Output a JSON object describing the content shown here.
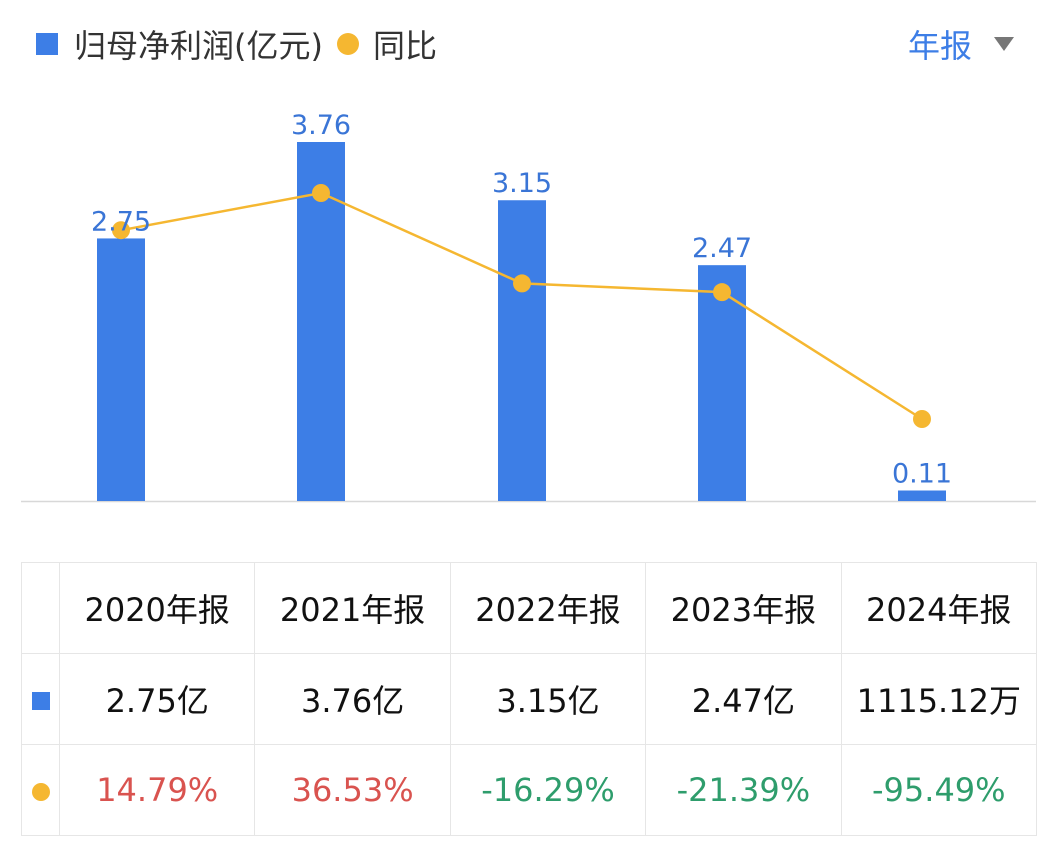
{
  "legend": {
    "bar_label": "归母净利润(亿元)",
    "line_label": "同比"
  },
  "period_selector": {
    "label": "年报"
  },
  "colors": {
    "bar": "#3d7ee6",
    "line": "#f5b731",
    "positive": "#d9534f",
    "negative": "#2e9d6c",
    "bar_label": "#3a75d6"
  },
  "chart_data": {
    "type": "bar",
    "categories": [
      "2020年报",
      "2021年报",
      "2022年报",
      "2023年报",
      "2024年报"
    ],
    "series": [
      {
        "name": "归母净利润(亿元)",
        "type": "bar",
        "values": [
          2.75,
          3.76,
          3.15,
          2.47,
          0.11
        ],
        "labels": [
          "2.75",
          "3.76",
          "3.15",
          "2.47",
          "0.11"
        ]
      },
      {
        "name": "同比",
        "type": "line",
        "unit": "%",
        "values": [
          14.79,
          36.53,
          -16.29,
          -21.39,
          -95.49
        ]
      }
    ],
    "ylim": [
      0,
      3.76
    ]
  },
  "table": {
    "headers": [
      "2020年报",
      "2021年报",
      "2022年报",
      "2023年报",
      "2024年报"
    ],
    "net_profit": [
      "2.75亿",
      "3.76亿",
      "3.15亿",
      "2.47亿",
      "1115.12万"
    ],
    "yoy": [
      "14.79%",
      "36.53%",
      "-16.29%",
      "-21.39%",
      "-95.49%"
    ]
  }
}
